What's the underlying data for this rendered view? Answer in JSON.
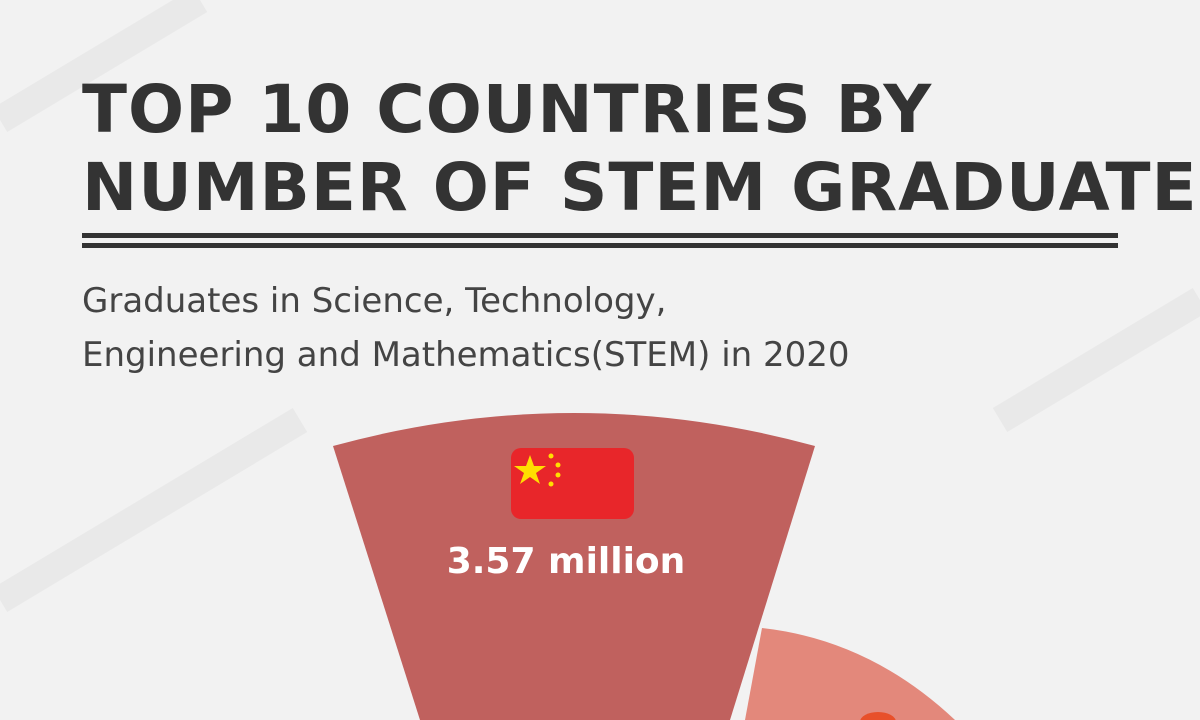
{
  "header": {
    "title": [
      "TOP 10 COUNTRIES BY",
      "NUMBER OF STEM GRADUATES"
    ],
    "subtitle": [
      "Graduates in Science, Technology,",
      "Engineering and Mathematics(STEM) in 2020"
    ]
  },
  "segments": [
    {
      "label": "3.57 million"
    }
  ]
}
